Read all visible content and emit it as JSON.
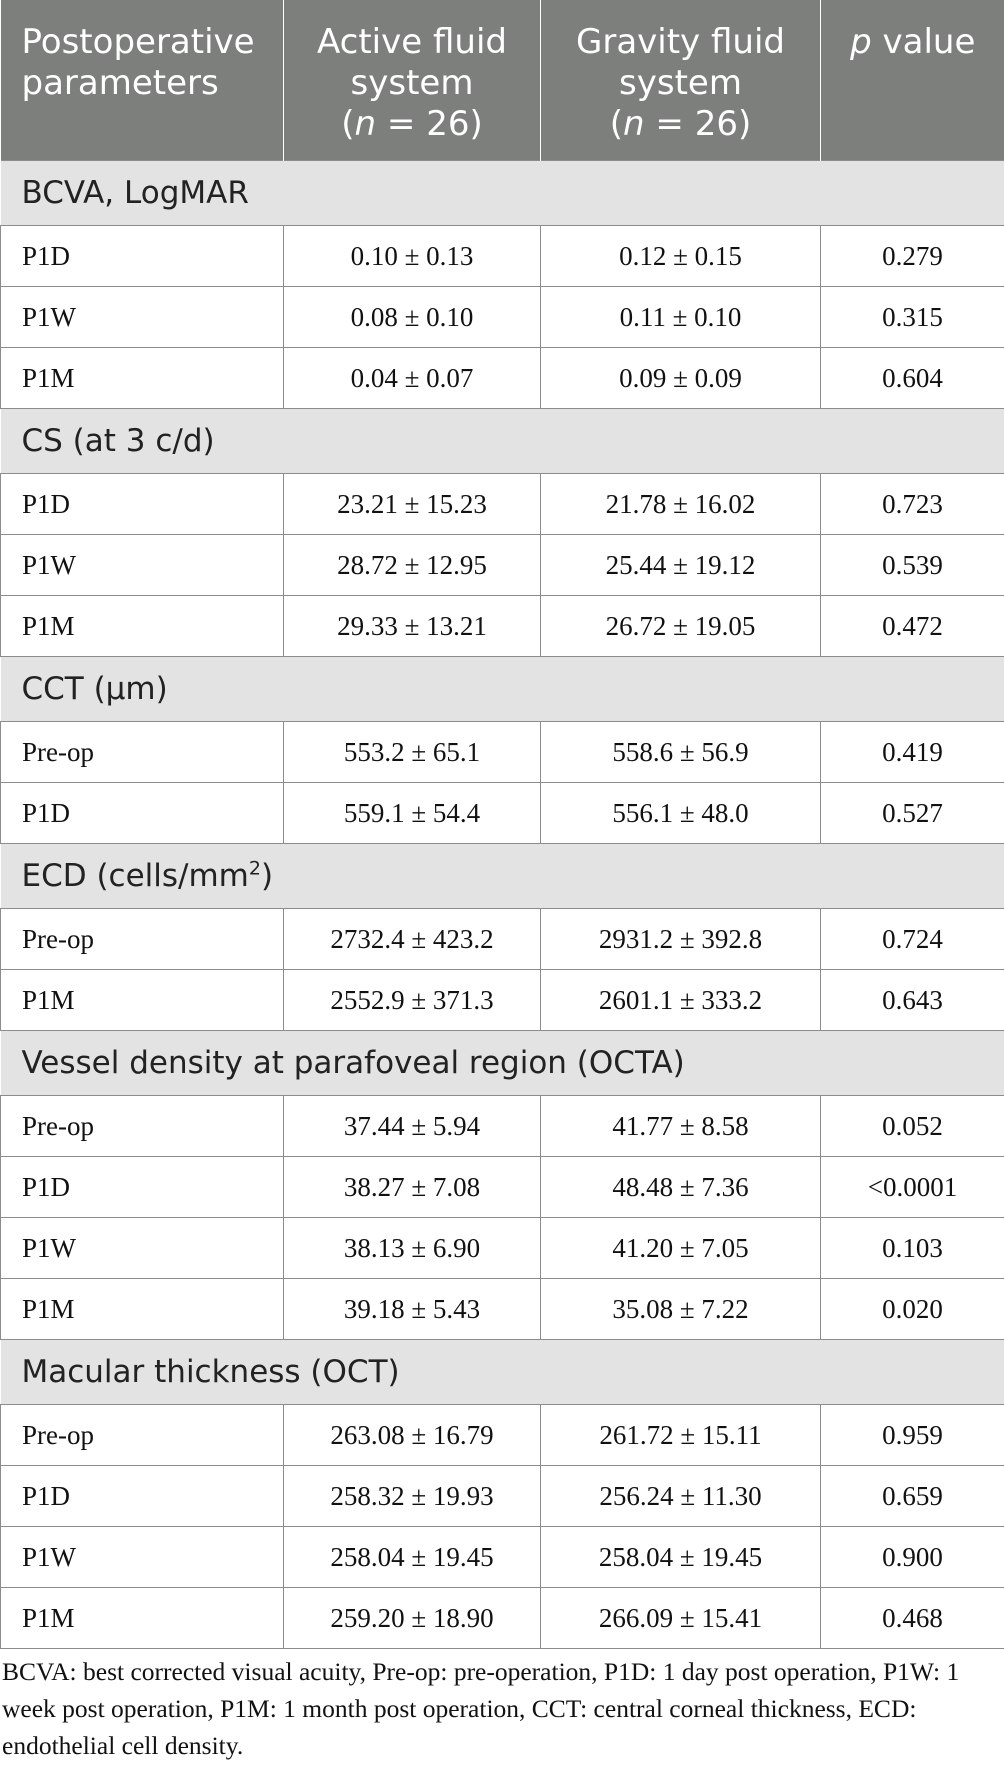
{
  "header": {
    "col1": "Postoperative parameters",
    "col2": {
      "line1": "Active fluid",
      "line2": "system",
      "n_italic": "n",
      "n_rest": " = 26)"
    },
    "col3": {
      "line1": "Gravity fluid",
      "line2": "system",
      "n_italic": "n",
      "n_rest": " = 26)"
    },
    "col4": {
      "p_italic": "p",
      "rest": " value"
    }
  },
  "sections": [
    {
      "title": "BCVA, LogMAR",
      "rows": [
        [
          "P1D",
          "0.10 ± 0.13",
          "0.12 ± 0.15",
          "0.279"
        ],
        [
          "P1W",
          "0.08 ± 0.10",
          "0.11 ± 0.10",
          "0.315"
        ],
        [
          "P1M",
          "0.04 ± 0.07",
          "0.09 ± 0.09",
          "0.604"
        ]
      ]
    },
    {
      "title": "CS (at 3 c/d)",
      "rows": [
        [
          "P1D",
          "23.21 ± 15.23",
          "21.78 ± 16.02",
          "0.723"
        ],
        [
          "P1W",
          "28.72 ± 12.95",
          "25.44 ± 19.12",
          "0.539"
        ],
        [
          "P1M",
          "29.33 ± 13.21",
          "26.72 ± 19.05",
          "0.472"
        ]
      ]
    },
    {
      "title": "CCT (μm)",
      "rows": [
        [
          "Pre-op",
          "553.2 ± 65.1",
          "558.6 ± 56.9",
          "0.419"
        ],
        [
          "P1D",
          "559.1 ± 54.4",
          "556.1 ± 48.0",
          "0.527"
        ]
      ]
    },
    {
      "title": "ECD (cells/mm",
      "title_sup": "2",
      "title_tail": ")",
      "rows": [
        [
          "Pre-op",
          "2732.4 ± 423.2",
          "2931.2 ± 392.8",
          "0.724"
        ],
        [
          "P1M",
          "2552.9 ± 371.3",
          "2601.1 ± 333.2",
          "0.643"
        ]
      ]
    },
    {
      "title": "Vessel density at parafoveal region (OCTA)",
      "rows": [
        [
          "Pre-op",
          "37.44 ± 5.94",
          "41.77 ± 8.58",
          "0.052"
        ],
        [
          "P1D",
          "38.27 ± 7.08",
          "48.48 ± 7.36",
          "<0.0001"
        ],
        [
          "P1W",
          "38.13 ± 6.90",
          "41.20 ± 7.05",
          "0.103"
        ],
        [
          "P1M",
          "39.18 ± 5.43",
          "35.08 ± 7.22",
          "0.020"
        ]
      ]
    },
    {
      "title": "Macular thickness (OCT)",
      "rows": [
        [
          "Pre-op",
          "263.08 ± 16.79",
          "261.72 ± 15.11",
          "0.959"
        ],
        [
          "P1D",
          "258.32 ± 19.93",
          "256.24 ± 11.30",
          "0.659"
        ],
        [
          "P1W",
          "258.04 ± 19.45",
          "258.04 ± 19.45",
          "0.900"
        ],
        [
          "P1M",
          "259.20 ± 18.90",
          "266.09 ± 15.41",
          "0.468"
        ]
      ]
    }
  ],
  "footnote": "BCVA: best corrected visual acuity, Pre-op: pre-operation, P1D: 1 day post operation, P1W: 1 week post operation, P1M: 1 month post operation, CCT: central corneal thickness, ECD: endothelial cell density."
}
